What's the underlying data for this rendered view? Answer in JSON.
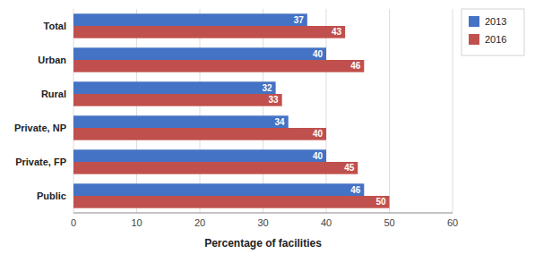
{
  "chart_data": {
    "type": "bar",
    "orientation": "horizontal",
    "categories": [
      "Total",
      "Urban",
      "Rural",
      "Private, NP",
      "Private, FP",
      "Public"
    ],
    "series": [
      {
        "name": "2013",
        "color": "#4472C4",
        "values": [
          37,
          40,
          32,
          34,
          40,
          46
        ]
      },
      {
        "name": "2016",
        "color": "#C0504D",
        "values": [
          43,
          46,
          33,
          40,
          45,
          50
        ]
      }
    ],
    "xlabel": "Percentage of facilities",
    "xlim": [
      0,
      60
    ],
    "xticks": [
      0,
      10,
      20,
      30,
      40,
      50,
      60
    ],
    "grid": true,
    "data_labels": true,
    "legend": "upper right"
  }
}
